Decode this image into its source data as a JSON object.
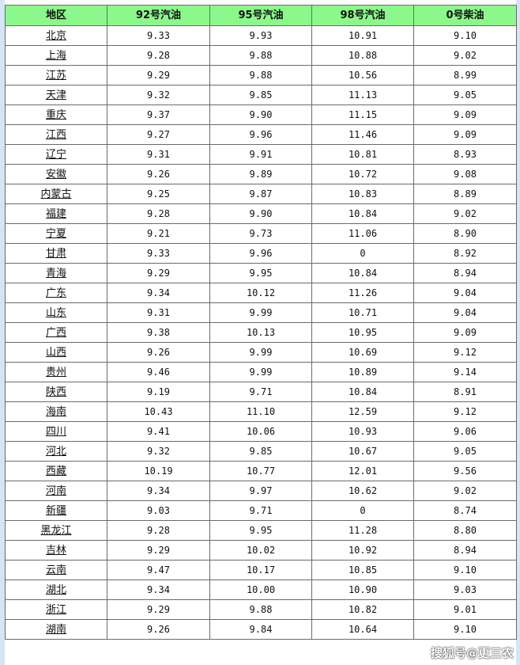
{
  "table": {
    "headers": [
      "地区",
      "92号汽油",
      "95号汽油",
      "98号汽油",
      "0号柴油"
    ],
    "rows": [
      [
        "北京",
        "9.33",
        "9.93",
        "10.91",
        "9.10"
      ],
      [
        "上海",
        "9.28",
        "9.88",
        "10.88",
        "9.02"
      ],
      [
        "江苏",
        "9.29",
        "9.88",
        "10.56",
        "8.99"
      ],
      [
        "天津",
        "9.32",
        "9.85",
        "11.13",
        "9.05"
      ],
      [
        "重庆",
        "9.37",
        "9.90",
        "11.15",
        "9.09"
      ],
      [
        "江西",
        "9.27",
        "9.96",
        "11.46",
        "9.09"
      ],
      [
        "辽宁",
        "9.31",
        "9.91",
        "10.81",
        "8.93"
      ],
      [
        "安徽",
        "9.26",
        "9.89",
        "10.72",
        "9.08"
      ],
      [
        "内蒙古",
        "9.25",
        "9.87",
        "10.83",
        "8.89"
      ],
      [
        "福建",
        "9.28",
        "9.90",
        "10.84",
        "9.02"
      ],
      [
        "宁夏",
        "9.21",
        "9.73",
        "11.06",
        "8.90"
      ],
      [
        "甘肃",
        "9.33",
        "9.96",
        "0",
        "8.92"
      ],
      [
        "青海",
        "9.29",
        "9.95",
        "10.84",
        "8.94"
      ],
      [
        "广东",
        "9.34",
        "10.12",
        "11.26",
        "9.04"
      ],
      [
        "山东",
        "9.31",
        "9.99",
        "10.71",
        "9.04"
      ],
      [
        "广西",
        "9.38",
        "10.13",
        "10.95",
        "9.09"
      ],
      [
        "山西",
        "9.26",
        "9.99",
        "10.69",
        "9.12"
      ],
      [
        "贵州",
        "9.46",
        "9.99",
        "10.89",
        "9.14"
      ],
      [
        "陕西",
        "9.19",
        "9.71",
        "10.84",
        "8.91"
      ],
      [
        "海南",
        "10.43",
        "11.10",
        "12.59",
        "9.12"
      ],
      [
        "四川",
        "9.41",
        "10.06",
        "10.93",
        "9.06"
      ],
      [
        "河北",
        "9.32",
        "9.85",
        "10.67",
        "9.05"
      ],
      [
        "西藏",
        "10.19",
        "10.77",
        "12.01",
        "9.56"
      ],
      [
        "河南",
        "9.34",
        "9.97",
        "10.62",
        "9.02"
      ],
      [
        "新疆",
        "9.03",
        "9.71",
        "0",
        "8.74"
      ],
      [
        "黑龙江",
        "9.28",
        "9.95",
        "11.28",
        "8.80"
      ],
      [
        "吉林",
        "9.29",
        "10.02",
        "10.92",
        "8.94"
      ],
      [
        "云南",
        "9.47",
        "10.17",
        "10.85",
        "9.10"
      ],
      [
        "湖北",
        "9.34",
        "10.00",
        "10.90",
        "9.03"
      ],
      [
        "浙江",
        "9.29",
        "9.88",
        "10.82",
        "9.01"
      ],
      [
        "湖南",
        "9.26",
        "9.84",
        "10.64",
        "9.10"
      ]
    ]
  },
  "watermark": "搜狐号@更三农",
  "colors": {
    "header_bg": "#8cf88c",
    "page_bg": "#d4e5f3"
  }
}
